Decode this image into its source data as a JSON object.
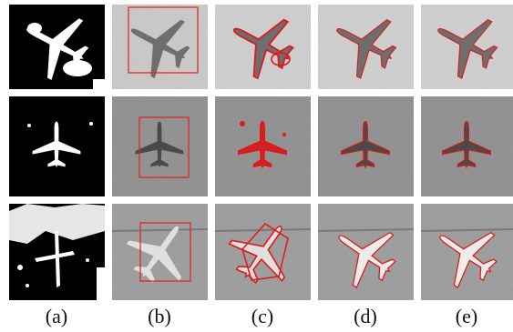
{
  "figure": {
    "column_labels": [
      "(a)",
      "(b)",
      "(c)",
      "(d)",
      "(e)"
    ],
    "colors": {
      "mask_white": "#ffffff",
      "mask_black": "#000000",
      "box_red": "#e02020",
      "contour_red": "#e01818",
      "row1_background": "#c9c9c9",
      "row2_background": "#8e8e8e",
      "row3_background": "#9b9b9b"
    },
    "rows": [
      {
        "name": "row-1",
        "subject": "airplane-icon"
      },
      {
        "name": "row-2",
        "subject": "airplane-icon"
      },
      {
        "name": "row-3",
        "subject": "airplane-icon"
      }
    ]
  }
}
